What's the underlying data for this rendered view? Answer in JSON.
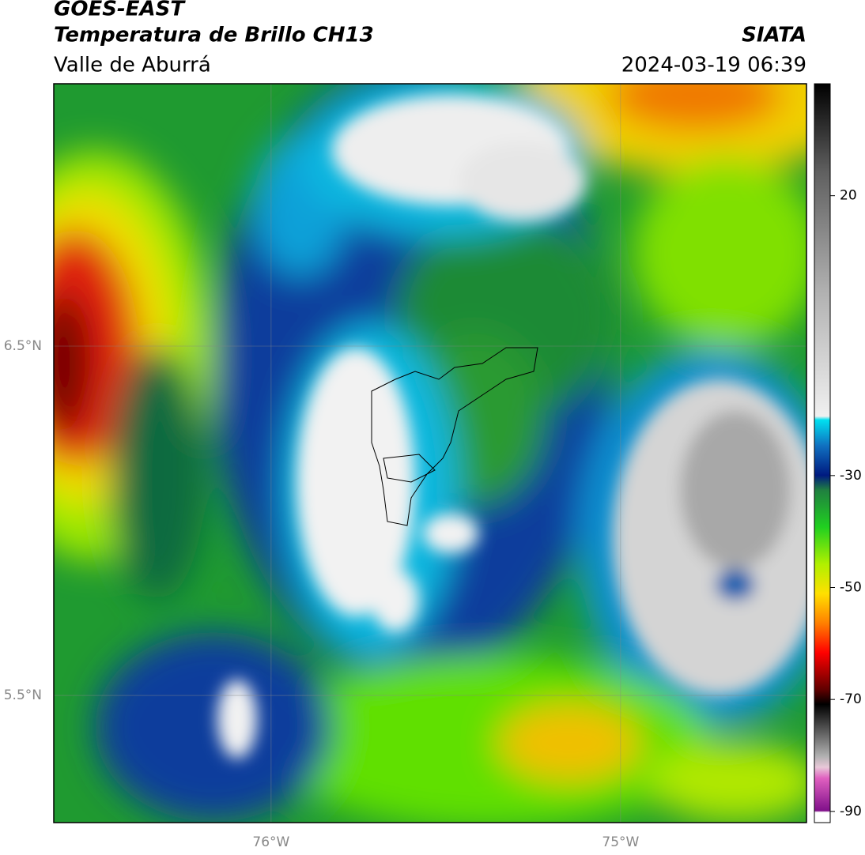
{
  "header": {
    "title": "GOES-EAST",
    "subtitle": "Temperatura de Brillo CH13",
    "region": "Valle de Aburrá",
    "source": "SIATA",
    "datetime": "2024-03-19 06:39"
  },
  "map": {
    "xlim": [
      -76.622,
      -74.468
    ],
    "ylim": [
      5.136,
      7.251
    ],
    "xticks": [
      {
        "value": -76,
        "label": "76°W"
      },
      {
        "value": -75,
        "label": "75°W"
      }
    ],
    "yticks": [
      {
        "value": 6.5,
        "label": "6.5°N"
      },
      {
        "value": 5.5,
        "label": "5.5°N"
      }
    ],
    "grid": true
  },
  "colorbar": {
    "lim": [
      -92,
      40
    ],
    "ticks": [
      20,
      -30,
      -50,
      -70,
      -90
    ]
  }
}
